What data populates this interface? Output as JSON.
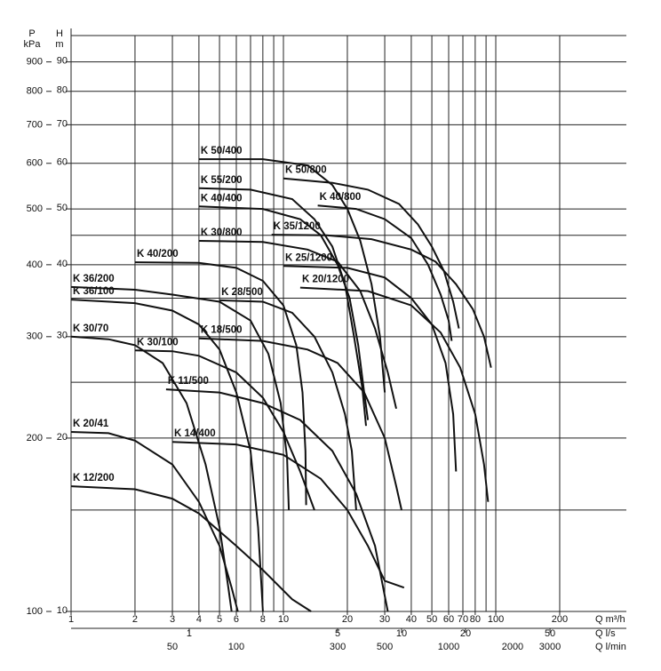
{
  "chart_data": {
    "type": "line",
    "log_x": true,
    "log_y": true,
    "color": "#111111",
    "x_label": "Q m³/h",
    "y_label": "H",
    "y_unit": "m",
    "y2_label": "P",
    "y2_unit": "kPa",
    "xlim": [
      1,
      412
    ],
    "ylim": [
      10,
      100
    ],
    "y2lim": [
      100,
      1000
    ],
    "xticks": [
      1,
      2,
      3,
      4,
      5,
      6,
      8,
      10,
      20,
      30,
      40,
      50,
      60,
      70,
      80,
      100,
      200
    ],
    "yticks": [
      10,
      20,
      30,
      40,
      50,
      60,
      70,
      80,
      90
    ],
    "y2ticks": [
      100,
      200,
      300,
      400,
      500,
      600,
      700,
      800,
      900
    ],
    "x_grid": [
      1,
      2,
      3,
      4,
      5,
      6,
      7,
      8,
      9,
      10,
      20,
      30,
      40,
      50,
      60,
      70,
      80,
      90,
      100,
      200
    ],
    "y_grid": [
      15,
      20,
      25,
      30,
      35,
      40,
      45,
      50,
      60,
      70,
      80,
      90,
      100
    ],
    "secondary_x": [
      {
        "label": "Q l/s",
        "xlim": [
          0.2778,
          114.4
        ],
        "xticks": [
          1,
          5,
          10,
          20,
          50
        ]
      },
      {
        "label": "Q l/min",
        "xlim": [
          16.67,
          6867
        ],
        "xticks": [
          50,
          100,
          300,
          500,
          1000,
          2000,
          3000
        ]
      }
    ],
    "series": [
      {
        "name": "K 50/400",
        "x": [
          4,
          8,
          13,
          17,
          20,
          23,
          26,
          28.5,
          30
        ],
        "values": [
          61,
          61,
          59.5,
          55,
          50,
          44,
          37,
          30,
          24
        ]
      },
      {
        "name": "K 50/800",
        "x": [
          10,
          17,
          25,
          35,
          43,
          50,
          57,
          63,
          67
        ],
        "values": [
          56.5,
          55.5,
          54,
          51,
          47,
          43,
          39,
          34.5,
          31
        ]
      },
      {
        "name": "K 55/200",
        "x": [
          4,
          7,
          11,
          14,
          17,
          19.5,
          21.5,
          23.5,
          24.5
        ],
        "values": [
          54.3,
          54,
          52,
          48,
          43,
          37,
          30,
          24.5,
          21
        ]
      },
      {
        "name": "K 40/400",
        "x": [
          4,
          8,
          12,
          15,
          18,
          20.5,
          22.5,
          24,
          25
        ],
        "values": [
          50.5,
          50,
          48,
          45,
          40,
          35,
          29,
          24,
          21.5
        ]
      },
      {
        "name": "K 40/800",
        "x": [
          14.5,
          22,
          30,
          40,
          48,
          55,
          60,
          62
        ],
        "values": [
          50.7,
          50,
          48,
          44.5,
          40,
          35.5,
          32,
          29.5
        ]
      },
      {
        "name": "K 30/800",
        "x": [
          4,
          8,
          13,
          18,
          23,
          27,
          31,
          34
        ],
        "values": [
          44,
          43.8,
          42.5,
          40.5,
          36,
          31,
          26,
          22.5
        ]
      },
      {
        "name": "K 35/1200",
        "x": [
          8.8,
          16,
          26,
          40,
          52,
          65,
          78,
          88,
          95
        ],
        "values": [
          45.1,
          45,
          44.3,
          42.5,
          40.5,
          37,
          33.5,
          30,
          26.5
        ]
      },
      {
        "name": "K 40/200",
        "x": [
          2,
          4,
          6,
          8,
          10,
          11.5,
          12.3,
          12.7,
          12.8
        ],
        "values": [
          40.4,
          40.3,
          39.5,
          37.5,
          34,
          29,
          24,
          19,
          15.3
        ]
      },
      {
        "name": "K 25/1200",
        "x": [
          10,
          20,
          30,
          40,
          50,
          58,
          63,
          65
        ],
        "values": [
          39.8,
          39.5,
          38,
          35,
          31.5,
          27,
          22,
          17.5
        ]
      },
      {
        "name": "K 20/1200",
        "x": [
          12,
          25,
          40,
          55,
          68,
          80,
          88,
          92
        ],
        "values": [
          36.5,
          36,
          34,
          30.5,
          26.5,
          22,
          18,
          15.5
        ]
      },
      {
        "name": "K 36/200",
        "x": [
          1,
          2,
          3,
          5,
          7,
          8.5,
          9.7,
          10.4,
          10.6
        ],
        "values": [
          36.6,
          36.2,
          35.5,
          34.5,
          32,
          28,
          23,
          18.5,
          15
        ]
      },
      {
        "name": "K 36/100",
        "x": [
          1,
          2,
          3,
          4,
          5,
          6,
          7,
          7.6,
          8
        ],
        "values": [
          34.8,
          34.3,
          33.3,
          31.5,
          28.5,
          24,
          19,
          14,
          10
        ]
      },
      {
        "name": "K 28/500",
        "x": [
          5,
          8,
          11,
          14,
          17,
          19.5,
          21,
          22
        ],
        "values": [
          34.7,
          34.5,
          33,
          30,
          26,
          22,
          19,
          15
        ]
      },
      {
        "name": "K 30/70",
        "x": [
          1,
          1.5,
          2,
          2.7,
          3.5,
          4.3,
          5,
          5.5,
          5.7
        ],
        "values": [
          30,
          29.7,
          29,
          27,
          23,
          18,
          14,
          11,
          10
        ]
      },
      {
        "name": "K 18/500",
        "x": [
          4,
          8,
          13,
          18,
          24,
          30,
          34,
          36
        ],
        "values": [
          29.8,
          29.5,
          28.5,
          27,
          24,
          20,
          16.5,
          15
        ]
      },
      {
        "name": "K 30/100",
        "x": [
          2,
          3,
          4,
          6,
          8,
          10,
          12,
          14
        ],
        "values": [
          28.4,
          28.3,
          27.8,
          26,
          23.5,
          20.5,
          17.5,
          15
        ]
      },
      {
        "name": "K 11/500",
        "x": [
          2.8,
          5,
          8,
          12,
          17,
          22,
          27,
          31
        ],
        "values": [
          24.3,
          24,
          23,
          21.5,
          19,
          16,
          13,
          10
        ]
      },
      {
        "name": "K 14/400",
        "x": [
          3,
          6,
          10,
          15,
          20,
          25,
          30,
          37
        ],
        "values": [
          19.7,
          19.5,
          18.7,
          17,
          15,
          13,
          11.3,
          11
        ]
      },
      {
        "name": "K 20/41",
        "x": [
          1,
          1.5,
          2,
          3,
          4,
          5,
          5.7,
          6.1
        ],
        "values": [
          20.5,
          20.4,
          19.8,
          18,
          15.5,
          13,
          11,
          10
        ]
      },
      {
        "name": "K 12/200",
        "x": [
          1,
          2,
          3,
          4,
          6,
          8,
          11,
          13.5
        ],
        "values": [
          16.5,
          16.3,
          15.7,
          14.8,
          13,
          11.8,
          10.5,
          10
        ]
      }
    ]
  }
}
